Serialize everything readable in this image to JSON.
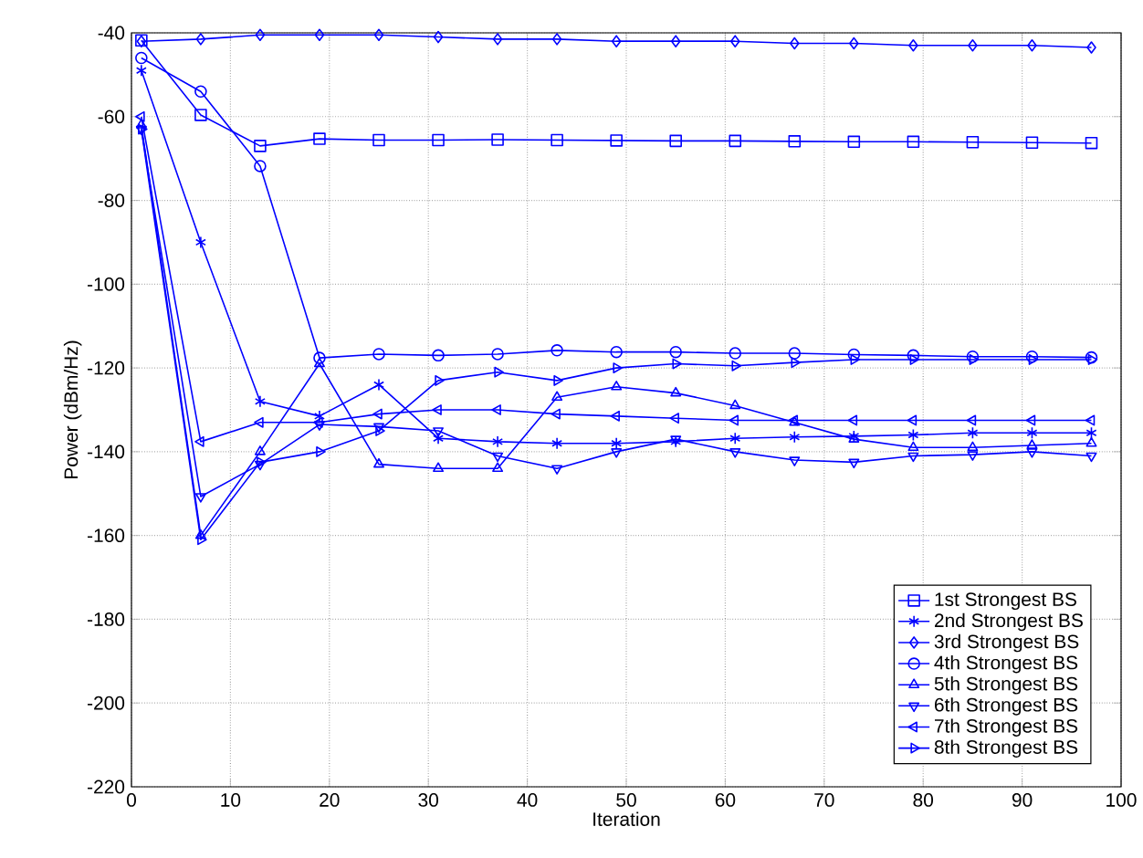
{
  "chart_data": {
    "type": "line",
    "xlabel": "Iteration",
    "ylabel": "Power (dBm/Hz)",
    "xlim": [
      0,
      100
    ],
    "ylim": [
      -220,
      -40
    ],
    "xticks": [
      0,
      10,
      20,
      30,
      40,
      50,
      60,
      70,
      80,
      90,
      100
    ],
    "yticks": [
      -220,
      -200,
      -180,
      -160,
      -140,
      -120,
      -100,
      -80,
      -60,
      -40
    ],
    "grid": true,
    "legend": "bottom right",
    "line_style": "solid",
    "x": [
      1,
      7,
      13,
      19,
      25,
      31,
      37,
      43,
      49,
      55,
      61,
      67,
      73,
      79,
      85,
      91,
      97
    ],
    "series": [
      {
        "name": "1st Strongest BS",
        "color": "#0000ff",
        "marker": "square",
        "values": [
          -41.8,
          -59.6,
          -67,
          -65.3,
          -65.6,
          -65.6,
          -65.5,
          -65.6,
          -65.7,
          -65.8,
          -65.8,
          -65.9,
          -66,
          -66,
          -66.1,
          -66.2,
          -66.3
        ]
      },
      {
        "name": "2nd Strongest BS",
        "color": "#0000ff",
        "marker": "cross",
        "values": [
          -49,
          -90,
          -128,
          -131.5,
          -124,
          -136.8,
          -137.6,
          -138,
          -138,
          -137.6,
          -136.8,
          -136.5,
          -136.3,
          -136,
          -135.5,
          -135.5,
          -135.5
        ]
      },
      {
        "name": "3rd Strongest BS",
        "color": "#0000ff",
        "marker": "diamond",
        "values": [
          -42,
          -41.5,
          -40.5,
          -40.5,
          -40.5,
          -41,
          -41.5,
          -41.5,
          -42,
          -42,
          -42,
          -42.5,
          -42.5,
          -43,
          -43,
          -43,
          -43.5
        ]
      },
      {
        "name": "4th Strongest BS",
        "color": "#0000ff",
        "marker": "circle",
        "values": [
          -46,
          -54,
          -71.8,
          -117.6,
          -116.7,
          -117,
          -116.7,
          -115.8,
          -116.2,
          -116.2,
          -116.5,
          -116.5,
          -116.8,
          -117,
          -117.3,
          -117.3,
          -117.5
        ]
      },
      {
        "name": "5th Strongest BS",
        "color": "#0000ff",
        "marker": "triangle-up",
        "values": [
          -62,
          -160,
          -140,
          -119,
          -143,
          -144,
          -144,
          -127,
          -124.5,
          -126,
          -129,
          -133,
          -137,
          -139,
          -139,
          -138.5,
          -138
        ]
      },
      {
        "name": "6th Strongest BS",
        "color": "#0000ff",
        "marker": "triangle-down",
        "values": [
          -63,
          -150.7,
          -143,
          -133.5,
          -134,
          -135,
          -141,
          -144,
          -140,
          -137,
          -140,
          -142,
          -142.5,
          -141,
          -140.7,
          -140,
          -141
        ]
      },
      {
        "name": "7th Strongest BS",
        "color": "#0000ff",
        "marker": "triangle-left",
        "values": [
          -60,
          -137.6,
          -133,
          -133,
          -131,
          -130,
          -130,
          -131,
          -131.5,
          -132,
          -132.5,
          -132.5,
          -132.5,
          -132.5,
          -132.5,
          -132.5,
          -132.5
        ]
      },
      {
        "name": "8th Strongest BS",
        "color": "#0000ff",
        "marker": "triangle-right",
        "values": [
          -63,
          -161,
          -142.5,
          -140,
          -135,
          -123,
          -121,
          -123,
          -120,
          -119,
          -119.5,
          -118.7,
          -118,
          -118,
          -118,
          -118,
          -118
        ]
      }
    ]
  }
}
